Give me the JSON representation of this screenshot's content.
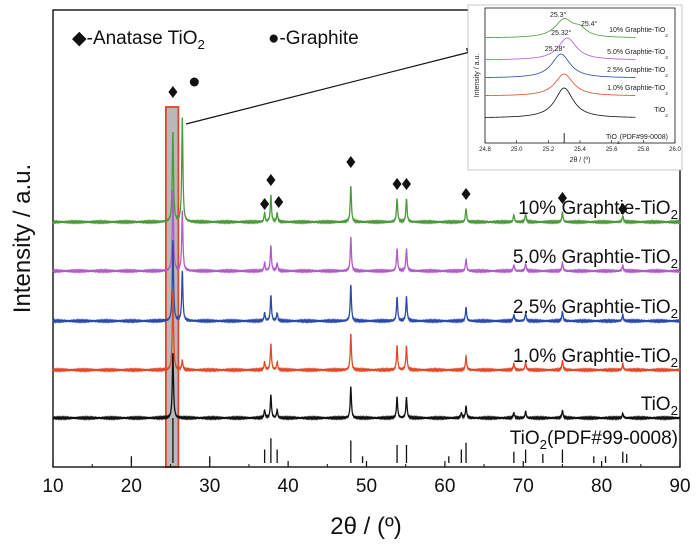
{
  "chart_data": [
    {
      "type": "line",
      "xlabel": "2θ / (º)",
      "ylabel": "Intensity / a.u.",
      "xlim": [
        10,
        90
      ],
      "xticks": [
        "10",
        "20",
        "30",
        "40",
        "50",
        "60",
        "70",
        "80",
        "90"
      ],
      "legend": [
        {
          "symbol": "◆",
          "text": "-Anatase TiO",
          "sub": "2"
        },
        {
          "symbol": "●",
          "text": "-Graphite",
          "sub": ""
        }
      ],
      "series": [
        {
          "name": "10% Graphtie-TiO",
          "sub": "2",
          "color": "#4a9a3a",
          "graphite": true,
          "peaks": [
            [
              25.3,
              1.0
            ],
            [
              26.5,
              1.15
            ],
            [
              37.0,
              0.1
            ],
            [
              37.8,
              0.3
            ],
            [
              38.6,
              0.1
            ],
            [
              48.0,
              0.4
            ],
            [
              53.9,
              0.26
            ],
            [
              55.1,
              0.26
            ],
            [
              62.7,
              0.15
            ],
            [
              68.8,
              0.08
            ],
            [
              70.3,
              0.09
            ],
            [
              75.0,
              0.11
            ],
            [
              82.7,
              0.07
            ]
          ]
        },
        {
          "name": "5.0% Graphtie-TiO",
          "sub": "2",
          "color": "#b05cc8",
          "graphite": true,
          "peaks": [
            [
              25.3,
              1.0
            ],
            [
              26.5,
              0.75
            ],
            [
              37.0,
              0.1
            ],
            [
              37.8,
              0.32
            ],
            [
              38.6,
              0.1
            ],
            [
              48.0,
              0.42
            ],
            [
              53.9,
              0.28
            ],
            [
              55.1,
              0.28
            ],
            [
              62.7,
              0.15
            ],
            [
              68.8,
              0.08
            ],
            [
              70.3,
              0.09
            ],
            [
              75.0,
              0.11
            ],
            [
              82.7,
              0.07
            ]
          ]
        },
        {
          "name": "2.5% Graphtie-TiO",
          "sub": "2",
          "color": "#2a4aa8",
          "graphite": true,
          "peaks": [
            [
              25.3,
              1.0
            ],
            [
              26.5,
              0.62
            ],
            [
              37.0,
              0.1
            ],
            [
              37.8,
              0.32
            ],
            [
              38.6,
              0.1
            ],
            [
              48.0,
              0.45
            ],
            [
              53.9,
              0.3
            ],
            [
              55.1,
              0.3
            ],
            [
              62.7,
              0.17
            ],
            [
              68.8,
              0.08
            ],
            [
              70.3,
              0.1
            ],
            [
              75.0,
              0.12
            ],
            [
              82.7,
              0.08
            ]
          ]
        },
        {
          "name": "1.0% Graphtie-TiO",
          "sub": "2",
          "color": "#e04a2a",
          "graphite": true,
          "peaks": [
            [
              25.3,
              1.0
            ],
            [
              26.5,
              0.12
            ],
            [
              37.0,
              0.1
            ],
            [
              37.8,
              0.32
            ],
            [
              38.6,
              0.1
            ],
            [
              48.0,
              0.45
            ],
            [
              53.9,
              0.3
            ],
            [
              55.1,
              0.3
            ],
            [
              62.7,
              0.17
            ],
            [
              68.8,
              0.08
            ],
            [
              70.3,
              0.1
            ],
            [
              75.0,
              0.12
            ],
            [
              82.7,
              0.08
            ]
          ]
        },
        {
          "name": "TiO",
          "sub": "2",
          "color": "#111111",
          "graphite": false,
          "peaks": [
            [
              25.3,
              1.0
            ],
            [
              37.0,
              0.12
            ],
            [
              37.8,
              0.35
            ],
            [
              38.6,
              0.12
            ],
            [
              48.0,
              0.48
            ],
            [
              53.9,
              0.32
            ],
            [
              55.1,
              0.32
            ],
            [
              62.1,
              0.08
            ],
            [
              62.7,
              0.18
            ],
            [
              68.8,
              0.08
            ],
            [
              70.3,
              0.1
            ],
            [
              75.0,
              0.12
            ],
            [
              82.7,
              0.07
            ]
          ]
        }
      ],
      "reference": {
        "name": "TiO",
        "sub": "2",
        "suffix": "(PDF#99-0008)",
        "lines": [
          [
            25.3,
            1.0
          ],
          [
            37.0,
            0.3
          ],
          [
            37.8,
            0.55
          ],
          [
            38.6,
            0.3
          ],
          [
            48.0,
            0.5
          ],
          [
            53.9,
            0.4
          ],
          [
            55.1,
            0.4
          ],
          [
            62.1,
            0.3
          ],
          [
            62.7,
            0.45
          ],
          [
            68.8,
            0.25
          ],
          [
            70.3,
            0.3
          ],
          [
            75.0,
            0.3
          ],
          [
            82.7,
            0.25
          ],
          [
            20.0,
            0.15
          ],
          [
            30.0,
            0.15
          ],
          [
            49.5,
            0.15
          ],
          [
            60.5,
            0.15
          ],
          [
            72.5,
            0.2
          ],
          [
            79.0,
            0.15
          ],
          [
            80.5,
            0.15
          ],
          [
            83.2,
            0.2
          ]
        ]
      },
      "anatase_markers": [
        25.3,
        37.0,
        37.8,
        38.8,
        48.0,
        53.9,
        55.1,
        62.7,
        75.0,
        82.7
      ],
      "graphite_markers": [
        26.5
      ],
      "highlight_range": [
        24.4,
        26.0
      ]
    },
    {
      "type": "line",
      "xlabel": "2θ / (º)",
      "ylabel": "Intensity / a.u.",
      "xlim": [
        24.8,
        26.0
      ],
      "xticks": [
        "24.8",
        "25.0",
        "25.2",
        "25.4",
        "25.6",
        "25.8",
        "26.0"
      ],
      "series": [
        {
          "name": "10% Graphtie-TiO",
          "sub": "2",
          "color": "#4a9a3a",
          "peak": 25.3,
          "peak_label": "25.3°"
        },
        {
          "name": "5.0% Graphtie-TiO",
          "sub": "2",
          "color": "#b05cc8",
          "peak": 25.32,
          "peak_label": "25.32°"
        },
        {
          "name": "2.5% Graphtie-TiO",
          "sub": "2",
          "color": "#2a4aa8",
          "peak": 25.28,
          "peak_label": "25.28°"
        },
        {
          "name": "1.0% Graphtie-TiO",
          "sub": "2",
          "color": "#e04a2a",
          "peak": 25.3,
          "peak_label": ""
        },
        {
          "name": "TiO",
          "sub": "2",
          "color": "#111111",
          "peak": 25.3,
          "peak_label": ""
        }
      ],
      "extra_labels": {
        "green_shoulder": "25.4°"
      },
      "reference": {
        "name": "TiO",
        "sub": "2",
        "suffix": "(PDF#99-0008)",
        "line": 25.3
      }
    }
  ]
}
